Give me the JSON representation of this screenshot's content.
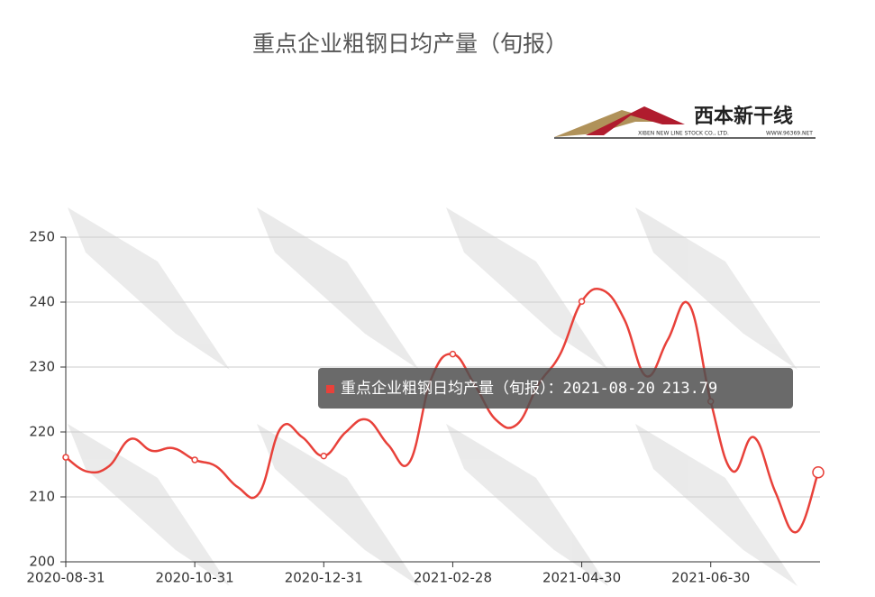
{
  "chart_data": {
    "type": "line",
    "title": "重点企业粗钢日均产量（旬报）",
    "logo": {
      "name": "西本新干线",
      "subtitle": "XIBEN NEW LINE STOCK CO., LTD.",
      "url": "WWW.96369.NET"
    },
    "categories": [
      "2020-08-31",
      null,
      null,
      null,
      null,
      null,
      "2020-10-31",
      null,
      null,
      null,
      null,
      null,
      "2020-12-31",
      null,
      null,
      null,
      null,
      null,
      "2021-02-28",
      null,
      null,
      null,
      null,
      null,
      "2021-04-30",
      null,
      null,
      null,
      null,
      null,
      "2021-06-30",
      null,
      null,
      null,
      null,
      "2021-08-20"
    ],
    "series": [
      {
        "name": "重点企业粗钢日均产量（旬报）",
        "color": "#e8413a",
        "values": [
          216.1,
          213.9,
          214.7,
          218.9,
          217.1,
          217.5,
          215.7,
          214.7,
          211.5,
          210.6,
          220.6,
          219.2,
          216.3,
          219.9,
          221.9,
          218.0,
          215.4,
          228.2,
          232.0,
          227.4,
          221.9,
          221.2,
          227.4,
          232.0,
          240.1,
          241.8,
          237.2,
          228.6,
          234.2,
          239.6,
          224.7,
          214.0,
          219.2,
          210.8,
          204.6,
          213.79
        ]
      }
    ],
    "ylim": [
      200,
      250
    ],
    "yticks": [
      200,
      210,
      220,
      230,
      240,
      250
    ],
    "grid": true,
    "tooltip_separator": "："
  }
}
